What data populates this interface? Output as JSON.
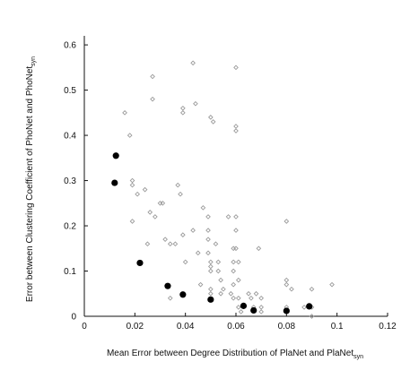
{
  "chart_data": {
    "type": "scatter",
    "xlabel": {
      "main": "Mean Error between Degree Distribution of PlaNet and PlaNet",
      "sub": "syn"
    },
    "ylabel": {
      "main": "Error between Clustering Coefficient of PhoNet and PhoNet",
      "sub": "syn"
    },
    "xlim": [
      0,
      0.12
    ],
    "ylim": [
      0,
      0.62
    ],
    "xticks": [
      "0",
      "0.02",
      "0.04",
      "0.06",
      "0.08",
      "0.1",
      "0.12"
    ],
    "yticks": [
      "0",
      "0.1",
      "0.2",
      "0.3",
      "0.4",
      "0.5",
      "0.6"
    ],
    "grid": false,
    "legend": "none",
    "series": [
      {
        "marker": "small-diamond",
        "color": "#9a9a9a",
        "points": [
          [
            0.016,
            0.45
          ],
          [
            0.018,
            0.4
          ],
          [
            0.019,
            0.3
          ],
          [
            0.019,
            0.29
          ],
          [
            0.019,
            0.21
          ],
          [
            0.021,
            0.27
          ],
          [
            0.024,
            0.28
          ],
          [
            0.025,
            0.16
          ],
          [
            0.026,
            0.23
          ],
          [
            0.027,
            0.53
          ],
          [
            0.027,
            0.48
          ],
          [
            0.028,
            0.22
          ],
          [
            0.03,
            0.25
          ],
          [
            0.031,
            0.25
          ],
          [
            0.032,
            0.17
          ],
          [
            0.034,
            0.16
          ],
          [
            0.034,
            0.04
          ],
          [
            0.036,
            0.16
          ],
          [
            0.037,
            0.29
          ],
          [
            0.038,
            0.27
          ],
          [
            0.039,
            0.46
          ],
          [
            0.039,
            0.45
          ],
          [
            0.039,
            0.18
          ],
          [
            0.04,
            0.12
          ],
          [
            0.043,
            0.56
          ],
          [
            0.043,
            0.19
          ],
          [
            0.044,
            0.47
          ],
          [
            0.045,
            0.14
          ],
          [
            0.046,
            0.07
          ],
          [
            0.047,
            0.24
          ],
          [
            0.049,
            0.22
          ],
          [
            0.049,
            0.19
          ],
          [
            0.049,
            0.17
          ],
          [
            0.049,
            0.14
          ],
          [
            0.05,
            0.44
          ],
          [
            0.05,
            0.12
          ],
          [
            0.05,
            0.11
          ],
          [
            0.05,
            0.1
          ],
          [
            0.05,
            0.06
          ],
          [
            0.05,
            0.05
          ],
          [
            0.051,
            0.43
          ],
          [
            0.052,
            0.16
          ],
          [
            0.053,
            0.12
          ],
          [
            0.053,
            0.1
          ],
          [
            0.054,
            0.08
          ],
          [
            0.054,
            0.05
          ],
          [
            0.055,
            0.06
          ],
          [
            0.057,
            0.22
          ],
          [
            0.058,
            0.05
          ],
          [
            0.059,
            0.15
          ],
          [
            0.059,
            0.12
          ],
          [
            0.059,
            0.1
          ],
          [
            0.059,
            0.07
          ],
          [
            0.059,
            0.04
          ],
          [
            0.06,
            0.55
          ],
          [
            0.06,
            0.42
          ],
          [
            0.06,
            0.41
          ],
          [
            0.06,
            0.22
          ],
          [
            0.06,
            0.19
          ],
          [
            0.06,
            0.15
          ],
          [
            0.061,
            0.12
          ],
          [
            0.061,
            0.08
          ],
          [
            0.061,
            0.04
          ],
          [
            0.061,
            0.02
          ],
          [
            0.062,
            0.01
          ],
          [
            0.065,
            0.05
          ],
          [
            0.066,
            0.04
          ],
          [
            0.067,
            0.02
          ],
          [
            0.068,
            0.05
          ],
          [
            0.069,
            0.15
          ],
          [
            0.07,
            0.04
          ],
          [
            0.07,
            0.02
          ],
          [
            0.07,
            0.01
          ],
          [
            0.08,
            0.21
          ],
          [
            0.08,
            0.08
          ],
          [
            0.08,
            0.07
          ],
          [
            0.08,
            0.02
          ],
          [
            0.082,
            0.06
          ],
          [
            0.087,
            0.02
          ],
          [
            0.09,
            0.06
          ],
          [
            0.09,
            0.02
          ],
          [
            0.09,
            0.0
          ],
          [
            0.098,
            0.07
          ]
        ]
      },
      {
        "marker": "filled-circle",
        "color": "#000000",
        "points": [
          [
            0.0125,
            0.355
          ],
          [
            0.012,
            0.295
          ],
          [
            0.022,
            0.118
          ],
          [
            0.033,
            0.067
          ],
          [
            0.039,
            0.048
          ],
          [
            0.05,
            0.037
          ],
          [
            0.063,
            0.023
          ],
          [
            0.067,
            0.013
          ],
          [
            0.08,
            0.012
          ],
          [
            0.089,
            0.022
          ]
        ]
      }
    ]
  }
}
